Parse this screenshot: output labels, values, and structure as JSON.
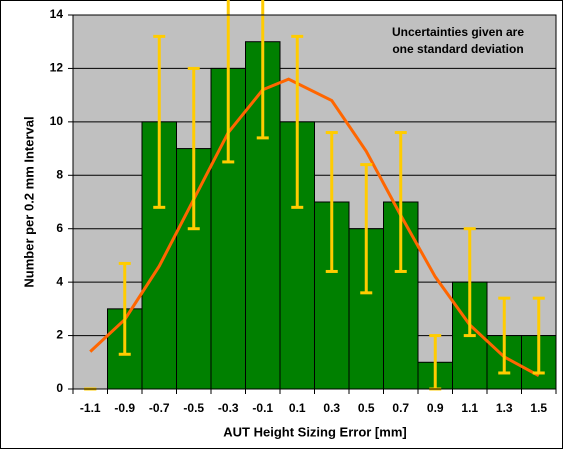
{
  "chart_data": {
    "type": "histogram",
    "xlabel": "AUT Height Sizing Error [mm]",
    "ylabel": "Number per 0.2 mm Interval",
    "annotation": [
      "Uncertainties given are",
      "one standard deviation"
    ],
    "bins": [
      -1.2,
      -1,
      -0.8,
      -0.6,
      -0.4,
      -0.2,
      0,
      0.2,
      0.4,
      0.6,
      0.8,
      1,
      1.2,
      1.4,
      1.6
    ],
    "values": [
      0,
      3,
      10,
      9,
      12,
      13,
      10,
      7,
      6,
      7,
      1,
      4,
      2,
      2
    ],
    "errors": [
      0,
      1.7,
      3.2,
      3,
      3.5,
      3.6,
      3.2,
      2.6,
      2.4,
      2.6,
      1,
      2,
      1.4,
      1.4
    ],
    "color": "#008000",
    "error_color": "#ffcc00",
    "curve": {
      "color": "#ff6600",
      "x": [
        -1.1,
        -0.9,
        -0.7,
        -0.5,
        -0.3,
        -0.1,
        0.05,
        0.3,
        0.5,
        0.7,
        0.9,
        1.1,
        1.3,
        1.5
      ],
      "values": [
        1.4,
        2.6,
        4.6,
        7.1,
        9.6,
        11.2,
        11.6,
        10.8,
        8.9,
        6.5,
        4.2,
        2.4,
        1.2,
        0.5
      ]
    },
    "xlim": [
      -1.2,
      1.6
    ],
    "ylim": [
      0,
      14
    ],
    "xticks": [
      -1.1,
      -0.9,
      -0.7,
      -0.5,
      -0.3,
      -0.1,
      0.1,
      0.3,
      0.5,
      0.7,
      0.9,
      1.1,
      1.3,
      1.5
    ],
    "yticks": [
      0,
      2,
      4,
      6,
      8,
      10,
      12,
      14
    ],
    "grid": true,
    "background": "#c0c0c0"
  }
}
